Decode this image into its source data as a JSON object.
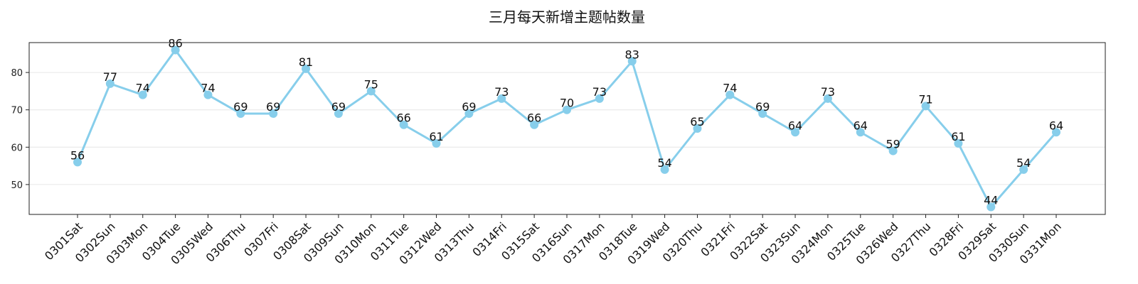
{
  "chart_data": {
    "type": "line",
    "title": "三月每天新增主题帖数量",
    "xlabel": "",
    "ylabel": "",
    "categories": [
      "0301Sat",
      "0302Sun",
      "0303Mon",
      "0304Tue",
      "0305Wed",
      "0306Thu",
      "0307Fri",
      "0308Sat",
      "0309Sun",
      "0310Mon",
      "0311Tue",
      "0312Wed",
      "0313Thu",
      "0314Fri",
      "0315Sat",
      "0316Sun",
      "0317Mon",
      "0318Tue",
      "0319Wed",
      "0320Thu",
      "0321Fri",
      "0322Sat",
      "0323Sun",
      "0324Mon",
      "0325Tue",
      "0326Wed",
      "0327Thu",
      "0328Fri",
      "0329Sat",
      "0330Sun",
      "0331Mon"
    ],
    "values": [
      56,
      77,
      74,
      86,
      74,
      69,
      69,
      81,
      69,
      75,
      66,
      61,
      69,
      73,
      66,
      70,
      73,
      83,
      54,
      65,
      74,
      69,
      64,
      73,
      64,
      59,
      71,
      61,
      44,
      54,
      64
    ],
    "ylim": [
      42,
      88
    ],
    "yticks": [
      50,
      60,
      70,
      80
    ],
    "grid": "horizontal",
    "line_color": "#87CEEB",
    "marker_color": "#87CEEB",
    "show_data_labels": true
  }
}
